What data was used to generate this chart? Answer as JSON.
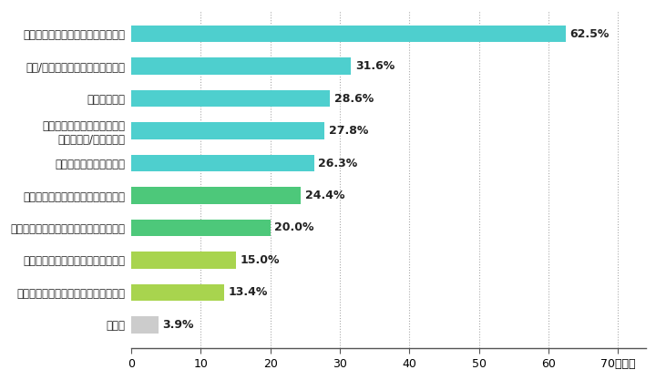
{
  "categories": [
    "収納する場所やスペースが足りない",
    "必要/不要な衣類の判断ができない",
    "不用品が多い",
    "しまう洋服の正しい手入れが\nわからない/ケアが大変",
    "クリーニング代がかかる",
    "正しい保管、収納方法がわからない",
    "衣替え後、どこにしまったかわからない",
    "不要な衣類の処分方法がわからない",
    "衣替えを行うタイミングがわからない",
    "その他"
  ],
  "values": [
    62.5,
    31.6,
    28.6,
    27.8,
    26.3,
    24.4,
    20.0,
    15.0,
    13.4,
    3.9
  ],
  "bar_colors": [
    "#4ECFCE",
    "#4ECFCE",
    "#4ECFCE",
    "#4ECFCE",
    "#4ECFCE",
    "#4DC87A",
    "#4DC87A",
    "#A8D44E",
    "#A8D44E",
    "#CCCCCC"
  ],
  "value_labels": [
    "62.5%",
    "31.6%",
    "28.6%",
    "27.8%",
    "26.3%",
    "24.4%",
    "20.0%",
    "15.0%",
    "13.4%",
    "3.9%"
  ],
  "xtick_labels": [
    "0",
    "10",
    "20",
    "30",
    "40",
    "50",
    "60",
    "70（％）"
  ],
  "xticks": [
    0,
    10,
    20,
    30,
    40,
    50,
    60,
    70
  ],
  "xlim": [
    0,
    74
  ],
  "figsize": [
    7.2,
    4.17
  ],
  "dpi": 100,
  "bar_height": 0.52,
  "label_fontsize": 8.5,
  "tick_fontsize": 9,
  "value_fontsize": 9,
  "bg_color": "#FFFFFF",
  "grid_color": "#AAAAAA"
}
